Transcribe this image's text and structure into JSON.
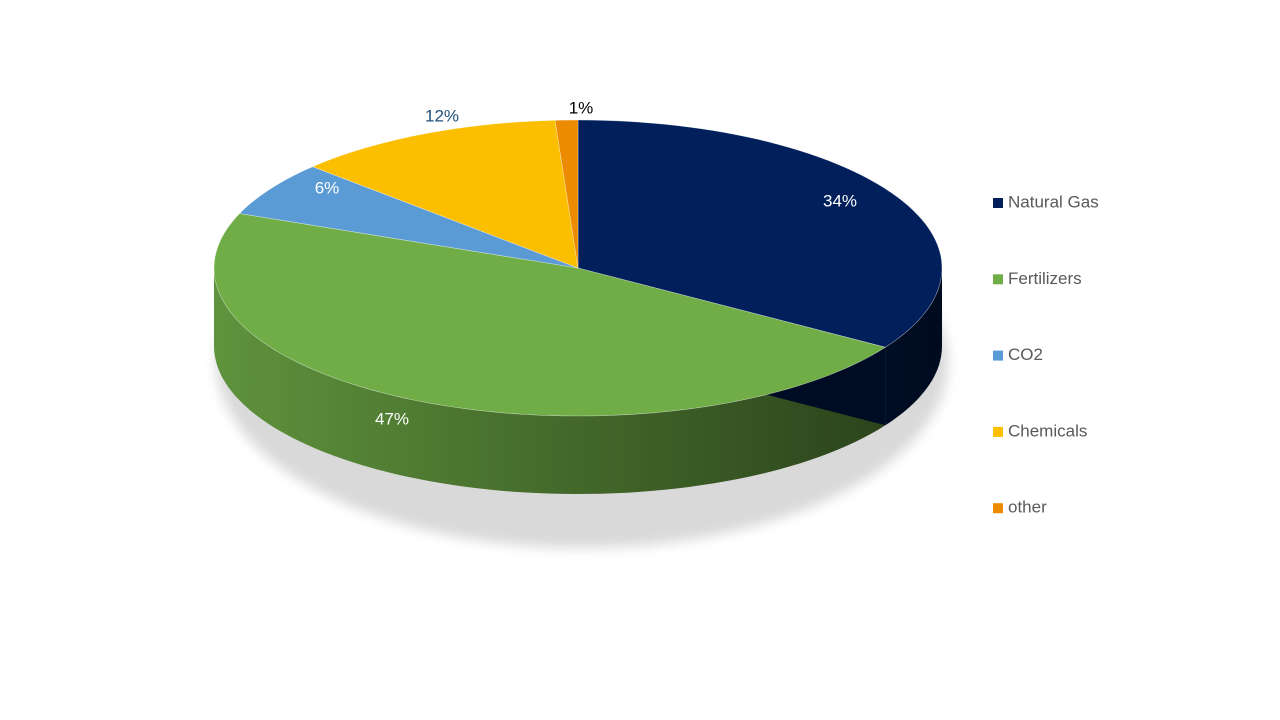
{
  "chart_data": {
    "type": "pie",
    "categories": [
      "Natural Gas",
      "Fertilizers",
      "CO2",
      "Chemicals",
      "other"
    ],
    "values": [
      34,
      47,
      6,
      12,
      1
    ],
    "value_labels": [
      "34%",
      "47%",
      "6%",
      "12%",
      "1%"
    ],
    "colors": [
      "#001f5b",
      "#70ad47",
      "#5b9bd5",
      "#fbbf00",
      "#ed8b00"
    ],
    "legend": "right"
  }
}
